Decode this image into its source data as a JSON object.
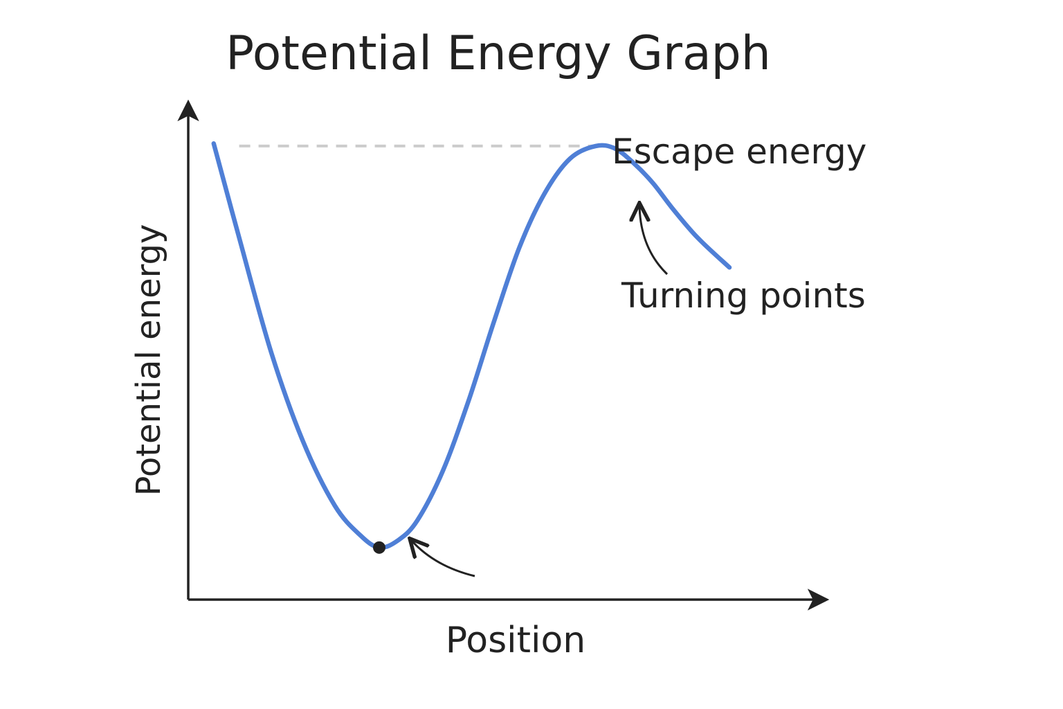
{
  "title": "Potential Energy Graph",
  "chart_data": {
    "type": "line",
    "title": "Potential Energy Graph",
    "xlabel": "Position",
    "ylabel": "Potential energy",
    "grid": false,
    "legend": "none",
    "ticks": false,
    "xlim": [
      0,
      10
    ],
    "ylim": [
      0,
      10
    ],
    "series": [
      {
        "color": "#4f7fd6",
        "x": [
          0.4,
          0.8,
          1.3,
          1.8,
          2.3,
          2.7,
          3.0,
          3.3,
          3.6,
          4.0,
          4.4,
          4.8,
          5.2,
          5.6,
          6.0,
          6.4,
          6.7,
          7.0,
          7.3,
          7.6,
          8.0,
          8.5
        ],
        "y": [
          9.2,
          7.3,
          5.0,
          3.2,
          1.9,
          1.3,
          1.05,
          1.2,
          1.6,
          2.6,
          4.0,
          5.6,
          7.1,
          8.2,
          8.9,
          9.15,
          9.1,
          8.8,
          8.4,
          7.9,
          7.3,
          6.7
        ]
      }
    ],
    "points": [
      {
        "x": 3.0,
        "y": 1.05,
        "color": "#222222"
      }
    ],
    "reference_lines": [
      {
        "orientation": "horizontal",
        "y": 9.15,
        "x_range": [
          0.8,
          6.4
        ],
        "style": "dashed",
        "color": "#cccccc"
      }
    ],
    "annotations": [
      {
        "text": "Escape energy"
      },
      {
        "text": "Turning points"
      }
    ]
  }
}
